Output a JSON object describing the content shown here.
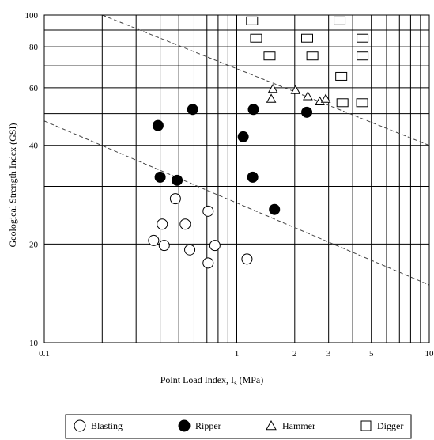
{
  "chart_data": {
    "type": "scatter",
    "xlabel": "Point Load Index, I",
    "xlabel_sub": "s",
    "xlabel_unit": " (MPa)",
    "ylabel": "Geological Strength Index (GSI)",
    "x_scale": "log",
    "y_scale": "log",
    "xlim": [
      0.1,
      10
    ],
    "ylim": [
      10,
      100
    ],
    "grid": true,
    "legend_position": "bottom",
    "x_ticks": [
      {
        "value": 0.1,
        "label": "0.1"
      },
      {
        "value": 1,
        "label": "1"
      },
      {
        "value": 2,
        "label": "2"
      },
      {
        "value": 3,
        "label": "3"
      },
      {
        "value": 5,
        "label": "5"
      },
      {
        "value": 10,
        "label": "10"
      }
    ],
    "y_ticks": [
      {
        "value": 10,
        "label": "10"
      },
      {
        "value": 20,
        "label": "20"
      },
      {
        "value": 40,
        "label": "40"
      },
      {
        "value": 60,
        "label": "60"
      },
      {
        "value": 80,
        "label": "80"
      },
      {
        "value": 100,
        "label": "100"
      }
    ],
    "x_gridlines": [
      0.2,
      0.3,
      0.4,
      0.5,
      0.6,
      0.7,
      0.8,
      0.9,
      1,
      2,
      3,
      4,
      5,
      6,
      7,
      8,
      9
    ],
    "y_gridlines": [
      20,
      30,
      40,
      50,
      60,
      70,
      80,
      90
    ],
    "boundary_lines": [
      {
        "style": "dashed",
        "points": [
          [
            0.2,
            100
          ],
          [
            10,
            40
          ]
        ]
      },
      {
        "style": "dashed",
        "points": [
          [
            0.1,
            47.5
          ],
          [
            10,
            15
          ]
        ]
      }
    ],
    "series": [
      {
        "name": "Blasting",
        "marker": "open-circle",
        "points": [
          [
            0.37,
            20.5
          ],
          [
            0.41,
            23
          ],
          [
            0.42,
            19.8
          ],
          [
            0.48,
            27.5
          ],
          [
            0.54,
            23
          ],
          [
            0.57,
            19.2
          ],
          [
            0.71,
            25.2
          ],
          [
            0.71,
            17.5
          ],
          [
            0.77,
            19.8
          ],
          [
            1.13,
            18
          ]
        ]
      },
      {
        "name": "Ripper",
        "marker": "filled-circle",
        "points": [
          [
            0.39,
            46
          ],
          [
            0.4,
            32
          ],
          [
            0.49,
            31.3
          ],
          [
            0.59,
            51.5
          ],
          [
            1.08,
            42.5
          ],
          [
            1.22,
            51.5
          ],
          [
            1.21,
            32
          ],
          [
            1.57,
            25.5
          ],
          [
            2.31,
            50.5
          ]
        ]
      },
      {
        "name": "Hammer",
        "marker": "open-triangle",
        "points": [
          [
            1.51,
            55.5
          ],
          [
            1.54,
            59.5
          ],
          [
            2.02,
            59
          ],
          [
            2.34,
            56.5
          ],
          [
            2.7,
            54.5
          ],
          [
            2.9,
            55.5
          ]
        ]
      },
      {
        "name": "Digger",
        "marker": "open-square",
        "points": [
          [
            1.2,
            96
          ],
          [
            1.26,
            85
          ],
          [
            1.48,
            75
          ],
          [
            2.32,
            85
          ],
          [
            2.47,
            75
          ],
          [
            3.42,
            96
          ],
          [
            3.49,
            65
          ],
          [
            3.54,
            54
          ],
          [
            4.5,
            85
          ],
          [
            4.5,
            75
          ],
          [
            4.48,
            54
          ]
        ]
      }
    ]
  },
  "legend": {
    "items": [
      {
        "label": "Blasting",
        "marker": "open-circle"
      },
      {
        "label": "Ripper",
        "marker": "filled-circle"
      },
      {
        "label": "Hammer",
        "marker": "open-triangle"
      },
      {
        "label": "Digger",
        "marker": "open-square"
      }
    ]
  }
}
